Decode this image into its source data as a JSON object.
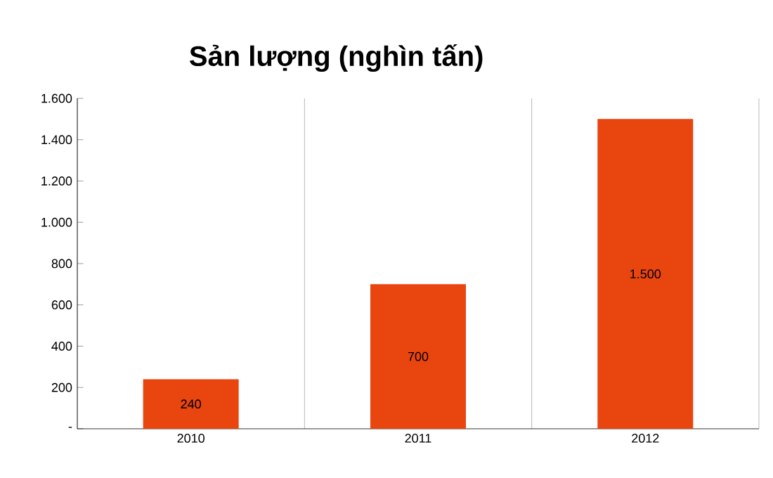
{
  "chart_data": {
    "type": "bar",
    "title": "Sản lượng (nghìn tấn)",
    "categories": [
      "2010",
      "2011",
      "2012"
    ],
    "values": [
      240,
      700,
      1500
    ],
    "value_labels": [
      "240",
      "700",
      "1.500"
    ],
    "color": "#e8450f",
    "ylim": [
      0,
      1600
    ],
    "yticks": [
      {
        "value": 0,
        "label": "-"
      },
      {
        "value": 200,
        "label": "200"
      },
      {
        "value": 400,
        "label": "400"
      },
      {
        "value": 600,
        "label": "600"
      },
      {
        "value": 800,
        "label": "800"
      },
      {
        "value": 1000,
        "label": "1.000"
      },
      {
        "value": 1200,
        "label": "1.200"
      },
      {
        "value": 1400,
        "label": "1.400"
      },
      {
        "value": 1600,
        "label": "1.600"
      }
    ],
    "grid": "x"
  }
}
